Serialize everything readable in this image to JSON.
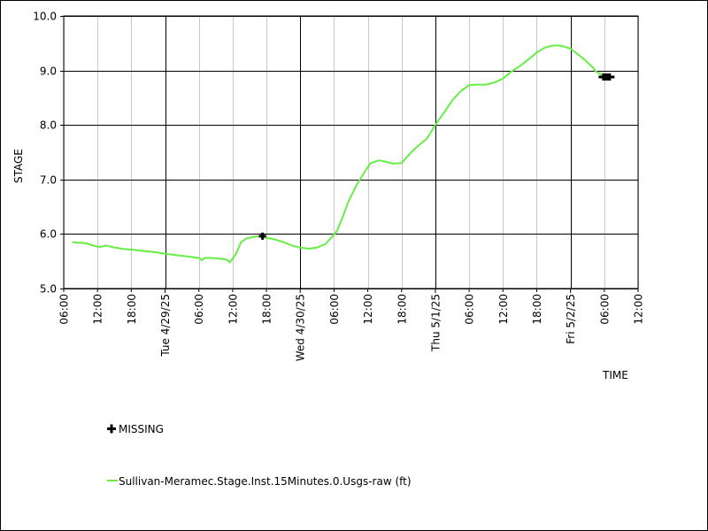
{
  "chart_data": {
    "type": "line",
    "ylabel": "STAGE",
    "xlabel": "TIME",
    "ylim": [
      5.0,
      10.0
    ],
    "y_ticks": [
      "5.0",
      "6.0",
      "7.0",
      "8.0",
      "9.0",
      "10.0"
    ],
    "x_range_hours": [
      -18,
      84
    ],
    "x_ticks_minor": [
      {
        "h": -18,
        "label": "06:00"
      },
      {
        "h": -12,
        "label": "12:00"
      },
      {
        "h": -6,
        "label": "18:00"
      },
      {
        "h": 6,
        "label": "06:00"
      },
      {
        "h": 12,
        "label": "12:00"
      },
      {
        "h": 30,
        "label": "06:00"
      },
      {
        "h": 36,
        "label": "12:00"
      },
      {
        "h": 42,
        "label": "18:00"
      },
      {
        "h": 54,
        "label": "06:00"
      },
      {
        "h": 60,
        "label": "12:00"
      },
      {
        "h": 66,
        "label": "18:00"
      },
      {
        "h": 78,
        "label": "06:00"
      },
      {
        "h": 84,
        "label": "12:00"
      }
    ],
    "x_ticks_major": [
      {
        "h": 0,
        "label": "Tue 4/29/25"
      },
      {
        "h": 24,
        "label": "Wed 4/30/25"
      },
      {
        "h": 48,
        "label": "Thu 5/1/25"
      },
      {
        "h": 72,
        "label": "Fri 5/2/25"
      }
    ],
    "x_ticks_extra": [
      {
        "h": 18,
        "label": "18:00"
      }
    ],
    "grid": true,
    "legend": {
      "placement": "bottom-left",
      "missing_label": "MISSING",
      "series_label": "Sullivan-Meramec.Stage.Inst.15Minutes.0.Usgs-raw (ft)"
    },
    "series": [
      {
        "name": "Sullivan-Meramec.Stage.Inst.15Minutes.0.Usgs-raw (ft)",
        "color": "#66ee44",
        "x": [
          -16.5,
          -14,
          -12.5,
          -11.5,
          -10.5,
          -9,
          -7,
          -5.5,
          -4,
          -2,
          0,
          2,
          4,
          6,
          6.5,
          7,
          8,
          9.5,
          11,
          11.5,
          12.5,
          13.5,
          14.5,
          16,
          17,
          18,
          19.5,
          21,
          22.5,
          24,
          25.5,
          27,
          28.5,
          29.5,
          30.5,
          31.5,
          32.5,
          34,
          35.5,
          36.5,
          38,
          39,
          40.5,
          42,
          43,
          44.5,
          46.5,
          48,
          49.5,
          51,
          52.5,
          54,
          55.5,
          57,
          58.5,
          60,
          61.5,
          63,
          64.5,
          66,
          67.5,
          69,
          70.5,
          72,
          73,
          74.5,
          76,
          76.5,
          77.5,
          78.5
        ],
        "y": [
          5.85,
          5.83,
          5.78,
          5.76,
          5.79,
          5.75,
          5.72,
          5.71,
          5.69,
          5.67,
          5.64,
          5.61,
          5.59,
          5.56,
          5.52,
          5.56,
          5.56,
          5.55,
          5.53,
          5.48,
          5.62,
          5.85,
          5.92,
          5.95,
          5.96,
          5.93,
          5.9,
          5.85,
          5.79,
          5.75,
          5.73,
          5.75,
          5.82,
          5.93,
          6.05,
          6.3,
          6.58,
          6.9,
          7.15,
          7.3,
          7.35,
          7.33,
          7.29,
          7.3,
          7.42,
          7.58,
          7.75,
          8.0,
          8.22,
          8.45,
          8.62,
          8.73,
          8.74,
          8.74,
          8.78,
          8.85,
          8.98,
          9.08,
          9.2,
          9.33,
          9.42,
          9.46,
          9.45,
          9.4,
          9.32,
          9.2,
          9.05,
          8.98,
          8.92,
          8.88
        ]
      }
    ],
    "missing_markers": [
      {
        "x": 17.3,
        "y": 5.96
      },
      {
        "x": 78.4,
        "y": 8.88
      }
    ]
  }
}
